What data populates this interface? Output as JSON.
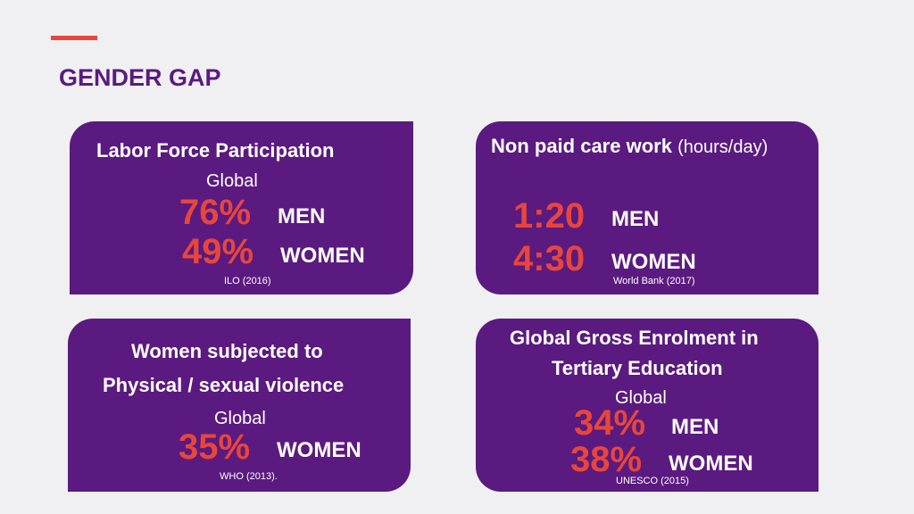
{
  "title": "GENDER GAP",
  "colors": {
    "accent": "#e8463c",
    "card": "#5b1a80",
    "background": "#f0f0f2"
  },
  "cards": {
    "labor": {
      "heading": "Labor Force Participation",
      "scope": "Global",
      "men_value": "76%",
      "men_label": "MEN",
      "women_value": "49%",
      "women_label": "WOMEN",
      "source": "ILO (2016)"
    },
    "care": {
      "heading": "Non paid care work",
      "heading_note": "(hours/day)",
      "men_value": "1:20",
      "men_label": "MEN",
      "women_value": "4:30",
      "women_label": "WOMEN",
      "source": "World Bank (2017)"
    },
    "violence": {
      "heading_line1": "Women subjected to",
      "heading_line2": "Physical / sexual violence",
      "scope": "Global",
      "women_value": "35%",
      "women_label": "WOMEN",
      "source": "WHO (2013)."
    },
    "education": {
      "heading_line1": "Global Gross Enrolment in",
      "heading_line2": "Tertiary Education",
      "scope": "Global",
      "men_value": "34%",
      "men_label": "MEN",
      "women_value": "38%",
      "women_label": "WOMEN",
      "source": "UNESCO (2015)"
    }
  }
}
